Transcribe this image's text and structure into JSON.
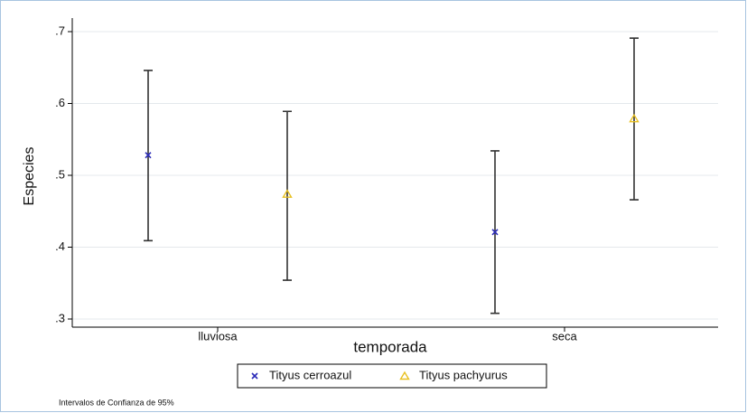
{
  "chart_data": {
    "type": "errorbar",
    "y_label": "Especies",
    "x_label": "temporada",
    "note": "Intervalos de Confianza de 95%",
    "categories": [
      "lluviosa",
      "seca"
    ],
    "series": [
      {
        "name": "Tityus cerroazul",
        "color": "#2a2ab8",
        "marker": "x",
        "values": [
          0.528,
          0.421
        ],
        "ci_low": [
          0.409,
          0.308
        ],
        "ci_high": [
          0.646,
          0.534
        ]
      },
      {
        "name": "Tityus pachyurus",
        "color": "#e8c020",
        "marker": "triangle",
        "values": [
          0.474,
          0.579
        ],
        "ci_low": [
          0.354,
          0.466
        ],
        "ci_high": [
          0.589,
          0.691
        ]
      }
    ],
    "ylim": [
      0.3,
      0.7
    ],
    "yticks": [
      {
        "value": 0.3,
        "label": ".3"
      },
      {
        "value": 0.4,
        "label": ".4"
      },
      {
        "value": 0.5,
        "label": ".5"
      },
      {
        "value": 0.6,
        "label": ".6"
      },
      {
        "value": 0.7,
        "label": ".7"
      }
    ],
    "grid": true
  }
}
